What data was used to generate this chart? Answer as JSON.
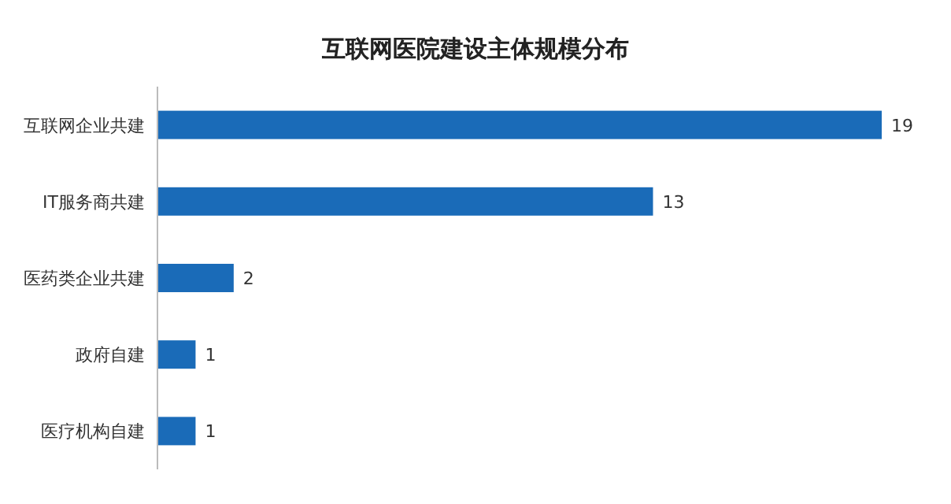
{
  "chart_data": {
    "type": "bar",
    "orientation": "horizontal",
    "title": "互联网医院建设主体规模分布",
    "categories": [
      "互联网企业共建",
      "IT服务商共建",
      "医药类企业共建",
      "政府自建",
      "医疗机构自建"
    ],
    "values": [
      19,
      13,
      2,
      1,
      1
    ],
    "color": "#1a6bb8",
    "data_labels": true
  }
}
